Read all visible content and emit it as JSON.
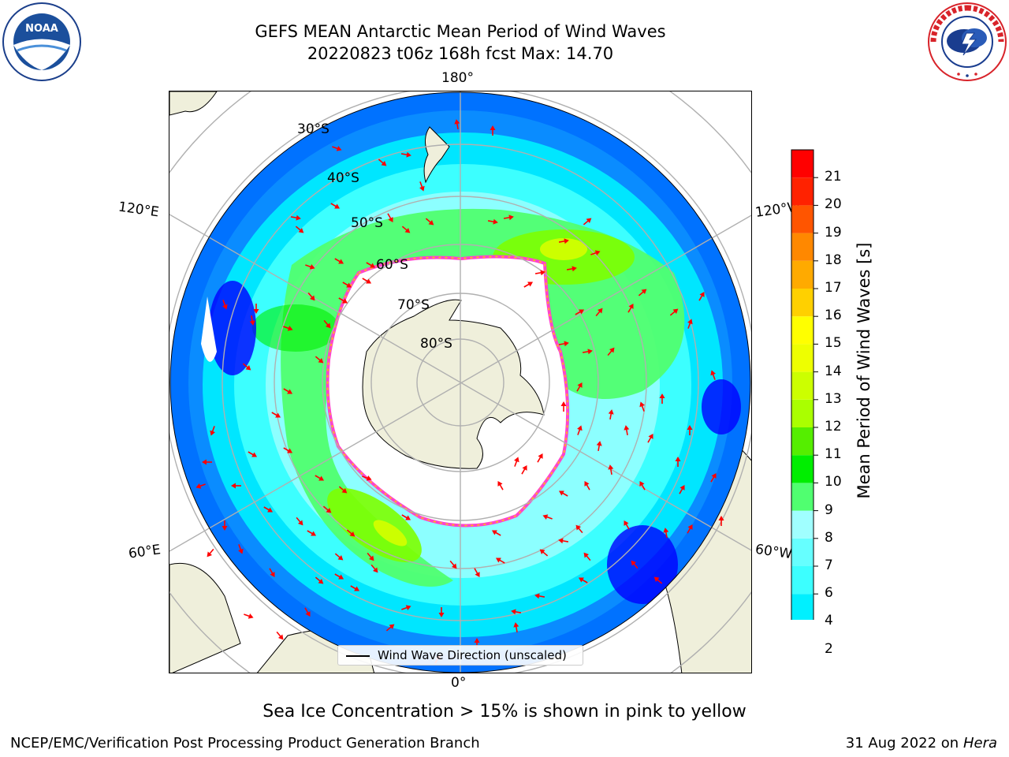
{
  "title": {
    "line1": "GEFS MEAN Antarctic Mean Period of Wind Waves",
    "line2": "20220823 t06z 168h fcst   Max: 14.70"
  },
  "logos": {
    "left": {
      "name": "noaa-logo",
      "text": "NOAA",
      "ring_text": "NATIONAL OCEANIC AND ATMOSPHERIC ADMINISTRATION · U.S. DEPARTMENT OF COMMERCE"
    },
    "right": {
      "name": "nws-logo",
      "ring_text": "NATIONAL WEATHER SERVICE"
    }
  },
  "map": {
    "projection": "south-polar-stereographic",
    "longitude_labels": {
      "top": "180°",
      "bottom": "0°",
      "upper_left": "120°E",
      "lower_left": "60°E",
      "upper_right": "120°W",
      "lower_right": "60°W"
    },
    "latitude_labels": [
      "30°S",
      "40°S",
      "50°S",
      "60°S",
      "70°S",
      "80°S"
    ],
    "gridlines": true,
    "colors": {
      "land": "#efefdb",
      "sea_ice_edge": "#ff44cc",
      "ice_interior": "#ffffff",
      "arrows": "#ff0000",
      "graticule": "#b0b0b0"
    }
  },
  "legend": {
    "entry": "Wind Wave Direction (unscaled)",
    "placement": "bottom-center"
  },
  "colorbar": {
    "label": "Mean Period of Wind Waves [s]",
    "ticks": [
      "2",
      "4",
      "6",
      "7",
      "8",
      "9",
      "10",
      "11",
      "12",
      "13",
      "14",
      "15",
      "16",
      "17",
      "18",
      "19",
      "20",
      "21"
    ],
    "colors": [
      "#0072ff",
      "#00f0ff",
      "#3cffff",
      "#66ffff",
      "#a0ffff",
      "#50ff70",
      "#00ee00",
      "#55ee00",
      "#aaff00",
      "#ccff00",
      "#eeff00",
      "#ffff00",
      "#ffd000",
      "#ffaa00",
      "#ff8800",
      "#ff5500",
      "#ff2200",
      "#ff0000"
    ],
    "under_color": "#0000ff",
    "extend": "min"
  },
  "note": "Sea Ice Concentration > 15% is shown in pink to yellow",
  "footer": {
    "left": "NCEP/EMC/Verification Post Processing Product Generation Branch",
    "right_date": "31 Aug 2022 on",
    "right_machine": "Hera"
  }
}
